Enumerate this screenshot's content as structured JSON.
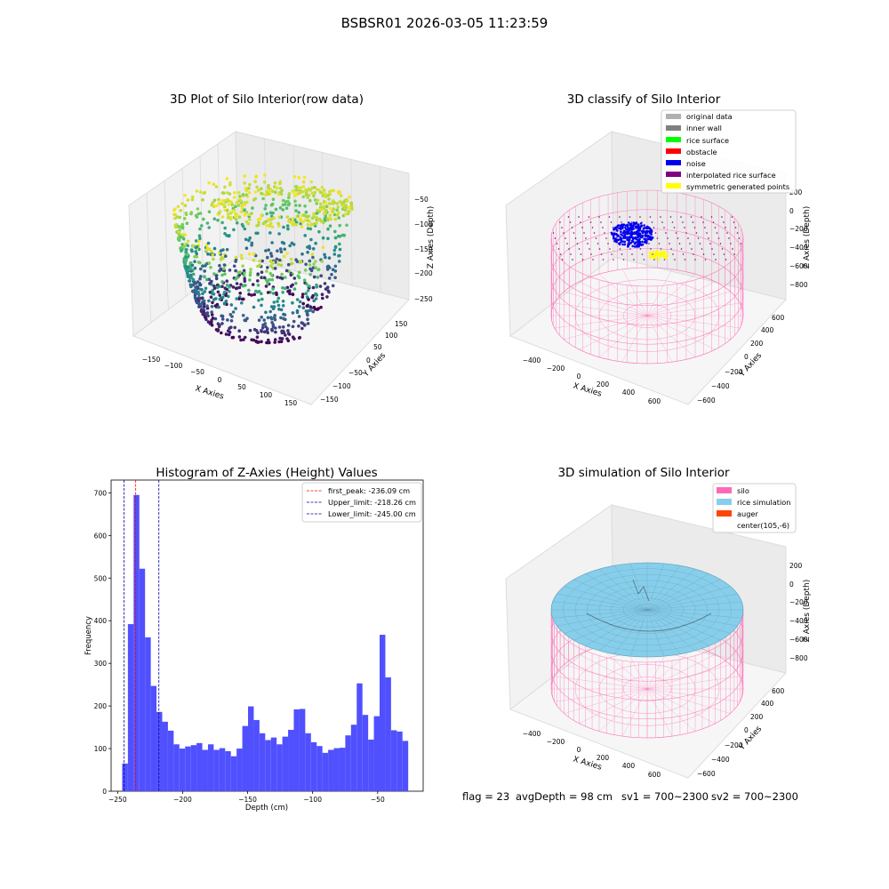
{
  "figure": {
    "suptitle": "BSBSR01 2026-03-05 11:23:59",
    "footer": {
      "flag": "flag = 23",
      "avg_depth": "avgDepth = 98 cm",
      "sv1": "sv1 = 700~2300",
      "sv2": "sv2 = 700~2300"
    }
  },
  "colors": {
    "hist_bar": "#5050ff",
    "first_peak": "#ff0000",
    "limits": "#0000aa",
    "silo": "#ff69b4",
    "rice_simulation": "#87ceeb",
    "auger": "#ff4500",
    "noise": "#0000ee",
    "symmetric": "#ffff00",
    "interpolated": "#800080",
    "inner_wall": "#808080",
    "original": "#b0b0b0",
    "rice_surface": "#00ff00",
    "obstacle": "#ff0000"
  },
  "chart_data": [
    {
      "type": "scatter",
      "projection": "3d",
      "title": "3D Plot of Silo Interior(row data)",
      "xlabel": "X Axies",
      "ylabel": "Y Axies",
      "zlabel": "Z Axies (Depth)",
      "xticks": [
        "−150",
        "−100",
        "−50",
        "0",
        "50",
        "100",
        "150"
      ],
      "yticks": [
        "−150",
        "−100",
        "−50",
        "0",
        "50",
        "100",
        "150"
      ],
      "zticks": [
        "−250",
        "−200",
        "−150",
        "−100",
        "−50"
      ],
      "xlim": [
        -175,
        175
      ],
      "ylim": [
        -175,
        175
      ],
      "zlim": [
        -275,
        -25
      ],
      "colormap": "viridis",
      "grid": true
    },
    {
      "type": "scatter",
      "projection": "3d",
      "title": "3D classify of Silo Interior",
      "xlabel": "X Axies",
      "ylabel": "Y Axies",
      "zlabel": "Z Axies (Depth)",
      "xticks": [
        "−400",
        "−200",
        "0",
        "200",
        "400",
        "600"
      ],
      "yticks": [
        "−600",
        "−400",
        "−200",
        "0",
        "200",
        "400",
        "600"
      ],
      "zticks": [
        "−800",
        "−600",
        "−400",
        "−200",
        "0",
        "200"
      ],
      "legend": [
        "original data",
        "inner wall",
        "rice surface",
        "obstacle",
        "noise",
        "interpolated rice surface",
        "symmetric generated points"
      ],
      "legend_loc": "top-right",
      "grid": true
    },
    {
      "type": "bar",
      "title": "Histogram of Z-Axies (Height) Values",
      "xlabel": "Depth (cm)",
      "ylabel": "Frequency",
      "xlim": [
        -255,
        -15
      ],
      "ylim": [
        0,
        730
      ],
      "xticks": [
        -250,
        -200,
        -150,
        -100,
        -50
      ],
      "xtick_labels": [
        "−250",
        "−200",
        "−150",
        "−100",
        "−50"
      ],
      "yticks": [
        0,
        100,
        200,
        300,
        400,
        500,
        600,
        700
      ],
      "bin_start": -246.5,
      "bin_width": 4.4,
      "values": [
        65,
        392,
        695,
        522,
        361,
        247,
        186,
        163,
        142,
        110,
        100,
        105,
        108,
        113,
        97,
        110,
        97,
        101,
        94,
        82,
        100,
        153,
        199,
        167,
        136,
        120,
        126,
        110,
        128,
        144,
        192,
        193,
        136,
        115,
        106,
        90,
        97,
        101,
        102,
        131,
        156,
        253,
        179,
        121,
        176,
        367,
        267,
        143,
        140,
        118
      ],
      "vlines": [
        {
          "label": "first_peak: -236.09 cm",
          "x": -236.09,
          "color": "#ff0000"
        },
        {
          "label": "Upper_limit: -218.26 cm",
          "x": -218.26,
          "color": "#0000aa"
        },
        {
          "label": "Lower_limit: -245.00 cm",
          "x": -245.0,
          "color": "#0000aa"
        }
      ],
      "legend_loc": "top-right"
    },
    {
      "type": "surface",
      "projection": "3d",
      "title": "3D simulation of Silo Interior",
      "xlabel": "X Axies",
      "ylabel": "Y Axies",
      "zlabel": "Z Axies (Depth)",
      "xticks": [
        "−400",
        "−200",
        "0",
        "200",
        "400",
        "600"
      ],
      "yticks": [
        "−600",
        "−400",
        "−200",
        "0",
        "200",
        "400",
        "600"
      ],
      "zticks": [
        "−800",
        "−600",
        "−400",
        "−200",
        "0",
        "200"
      ],
      "legend": [
        "silo",
        "rice simulation",
        "auger",
        "center(105,-6)"
      ],
      "legend_loc": "top-right",
      "grid": true
    }
  ]
}
